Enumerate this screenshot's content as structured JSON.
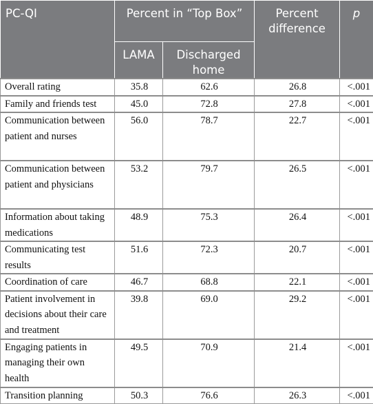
{
  "header": {
    "indicator": "PC-QI",
    "percent_top_box": "Percent in “Top Box”",
    "percent_difference": "Percent difference",
    "p": "p",
    "lama": "LAMA",
    "discharged_home": "Discharged home"
  },
  "rows": [
    {
      "label": "Overall rating",
      "lama": "35.8",
      "home": "62.6",
      "diff": "26.8",
      "p": "<.001"
    },
    {
      "label": "Family and friends test",
      "lama": "45.0",
      "home": "72.8",
      "diff": "27.8",
      "p": "<.001"
    },
    {
      "label": "Communication between patient and nurses",
      "lama": "56.0",
      "home": "78.7",
      "diff": "22.7",
      "p": "<.001"
    },
    {
      "label": "Communication between patient and physicians",
      "lama": "53.2",
      "home": "79.7",
      "diff": "26.5",
      "p": "<.001"
    },
    {
      "label": "Information about taking medications",
      "lama": "48.9",
      "home": "75.3",
      "diff": "26.4",
      "p": "<.001"
    },
    {
      "label": "Communicating test results",
      "lama": "51.6",
      "home": "72.3",
      "diff": "20.7",
      "p": "<.001"
    },
    {
      "label": "Coordination of care",
      "lama": "46.7",
      "home": "68.8",
      "diff": "22.1",
      "p": "<.001"
    },
    {
      "label": "Patient involvement in decisions about their care and treatment",
      "lama": "39.8",
      "home": "69.0",
      "diff": "29.2",
      "p": "<.001"
    },
    {
      "label": "Engaging patients in managing their own health",
      "lama": "49.5",
      "home": "70.9",
      "diff": "21.4",
      "p": "<.001"
    },
    {
      "label": "Transition planning",
      "lama": "50.3",
      "home": "76.6",
      "diff": "26.3",
      "p": "<.001"
    }
  ]
}
